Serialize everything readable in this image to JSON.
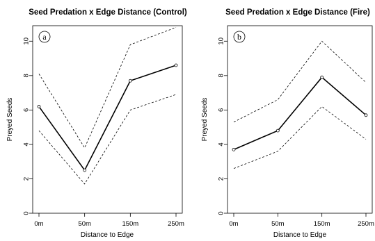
{
  "chart_data": [
    {
      "type": "line",
      "title": "Seed Predation x Edge Distance (Control)",
      "panel_label": "a",
      "xlabel": "Distance to Edge",
      "ylabel": "Preyed Seeds",
      "categories": [
        "0m",
        "50m",
        "150m",
        "250m"
      ],
      "yticks": [
        "0",
        "2",
        "4",
        "6",
        "8",
        "10"
      ],
      "ylim": [
        0,
        10.9
      ],
      "grid": false,
      "series": [
        {
          "role": "mean",
          "style": "solid",
          "markers": true,
          "values": [
            6.2,
            2.5,
            7.7,
            8.6
          ]
        },
        {
          "role": "upper",
          "style": "dashed",
          "markers": false,
          "values": [
            8.1,
            3.8,
            9.8,
            10.8
          ]
        },
        {
          "role": "lower",
          "style": "dashed",
          "markers": false,
          "values": [
            4.8,
            1.7,
            6.0,
            6.9
          ]
        }
      ]
    },
    {
      "type": "line",
      "title": "Seed Predation x Edge Distance (Fire)",
      "panel_label": "b",
      "xlabel": "Distance to Edge",
      "ylabel": "Preyed Seeds",
      "categories": [
        "0m",
        "50m",
        "150m",
        "250m"
      ],
      "yticks": [
        "0",
        "2",
        "4",
        "6",
        "8",
        "10"
      ],
      "ylim": [
        0,
        10.9
      ],
      "grid": false,
      "series": [
        {
          "role": "mean",
          "style": "solid",
          "markers": true,
          "values": [
            3.7,
            4.8,
            7.9,
            5.7
          ]
        },
        {
          "role": "upper",
          "style": "dashed",
          "markers": false,
          "values": [
            5.3,
            6.6,
            10.0,
            7.6
          ]
        },
        {
          "role": "lower",
          "style": "dashed",
          "markers": false,
          "values": [
            2.6,
            3.6,
            6.2,
            4.3
          ]
        }
      ]
    }
  ]
}
